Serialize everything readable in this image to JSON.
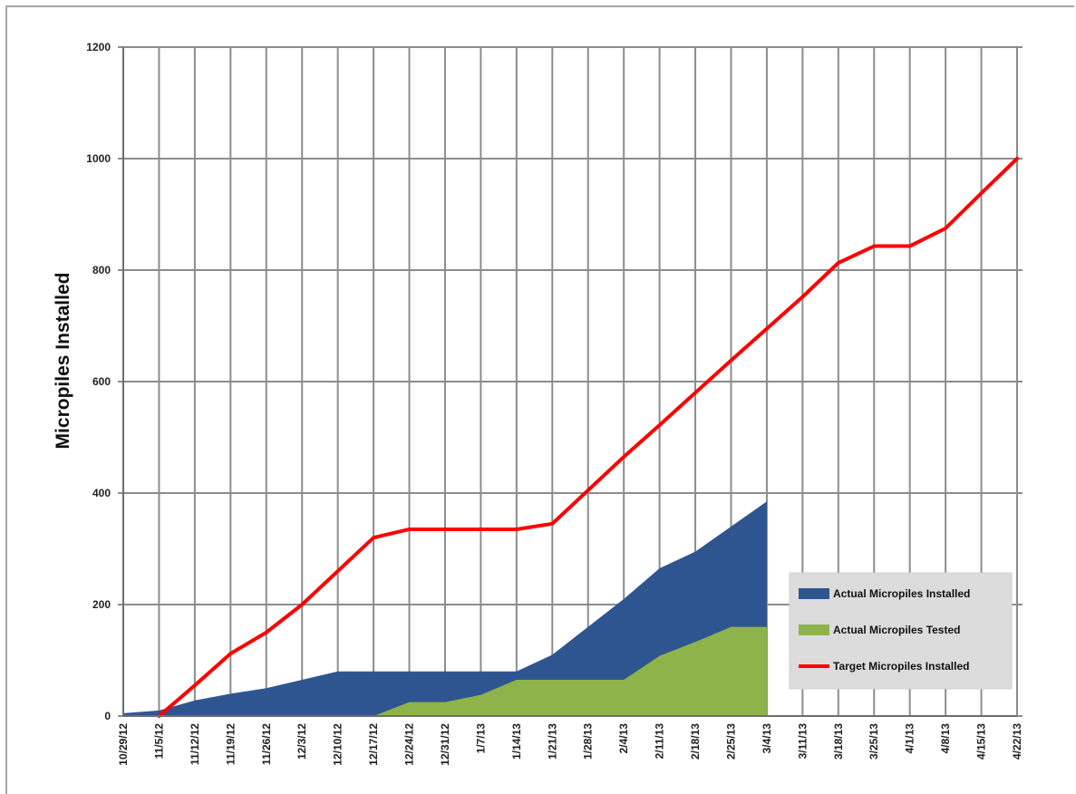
{
  "chart_data": {
    "type": "area",
    "title": "",
    "xlabel": "",
    "ylabel": "Micropiles Installed",
    "ylim": [
      0,
      1200
    ],
    "yticks": [
      0,
      200,
      400,
      600,
      800,
      1000,
      1200
    ],
    "grid": true,
    "legend_position": "bottom-right",
    "categories": [
      "10/29/12",
      "11/5/12",
      "11/12/12",
      "11/19/12",
      "11/26/12",
      "12/3/12",
      "12/10/12",
      "12/17/12",
      "12/24/12",
      "12/31/12",
      "1/7/13",
      "1/14/13",
      "1/21/13",
      "1/28/13",
      "2/4/13",
      "2/11/13",
      "2/18/13",
      "2/25/13",
      "3/4/13",
      "3/11/13",
      "3/18/13",
      "3/25/13",
      "4/1/13",
      "4/8/13",
      "4/15/13",
      "4/22/13"
    ],
    "series": [
      {
        "name": "Actual Micropiles Installed",
        "kind": "area",
        "color": "#2e5590",
        "values": [
          5,
          10,
          28,
          40,
          50,
          65,
          80,
          80,
          80,
          80,
          80,
          80,
          110,
          160,
          210,
          265,
          295,
          340,
          385,
          null,
          null,
          null,
          null,
          null,
          null,
          null
        ]
      },
      {
        "name": "Actual Micropiles Tested",
        "kind": "area",
        "color": "#8db34a",
        "values": [
          0,
          0,
          0,
          0,
          0,
          0,
          0,
          0,
          25,
          25,
          38,
          65,
          65,
          65,
          65,
          108,
          133,
          160,
          160,
          null,
          null,
          null,
          null,
          null,
          null,
          null
        ]
      },
      {
        "name": "Target Micropiles Installed",
        "kind": "line",
        "color": "#ff0000",
        "values": [
          null,
          0,
          55,
          112,
          150,
          200,
          260,
          320,
          335,
          335,
          335,
          335,
          345,
          405,
          465,
          522,
          580,
          638,
          695,
          752,
          813,
          843,
          843,
          875,
          938,
          1000
        ]
      }
    ]
  }
}
